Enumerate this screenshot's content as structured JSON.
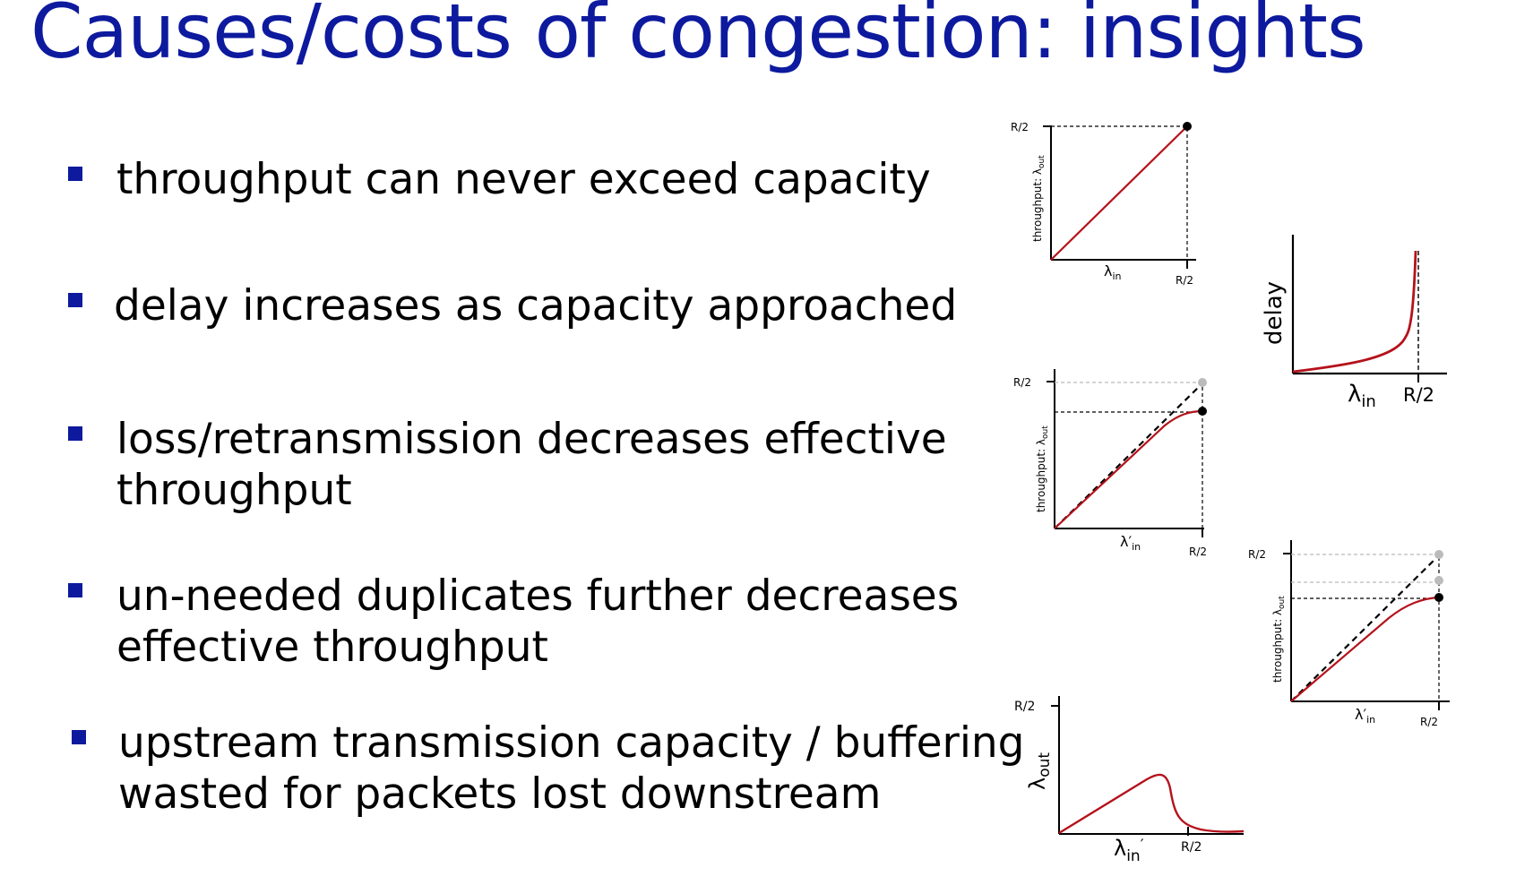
{
  "slide": {
    "title": "Causes/costs of congestion: insights",
    "bullets": [
      {
        "lines": [
          "throughput can never exceed capacity"
        ]
      },
      {
        "lines": [
          "delay increases as capacity approached"
        ]
      },
      {
        "lines": [
          "loss/retransmission decreases effective",
          "throughput"
        ]
      },
      {
        "lines": [
          "un-needed duplicates further decreases",
          "effective throughput"
        ]
      },
      {
        "lines": [
          "upstream transmission capacity / buffering",
          "wasted for packets lost downstream"
        ]
      }
    ],
    "colors": {
      "title": "#0d1a9e",
      "bullet_marker": "#0d1a9e",
      "curve": "#b5121b"
    }
  },
  "graphs": {
    "g1": {
      "y_tick": "R/2",
      "x_tick": "R/2",
      "y_label": "throughput: λ",
      "y_sub": "out",
      "x_label": "λ",
      "x_sub": "in"
    },
    "g2": {
      "y_label": "delay",
      "x_label": "λ",
      "x_sub": "in",
      "x_tick": "R/2"
    },
    "g3": {
      "y_tick": "R/2",
      "x_tick": "R/2",
      "y_label": "throughput: λ",
      "y_sub": "out",
      "x_label": "λ′",
      "x_sub": "in"
    },
    "g4": {
      "y_tick": "R/2",
      "x_tick": "R/2",
      "y_label": "throughput: λ",
      "y_sub": "out",
      "x_label": "λ′",
      "x_sub": "in"
    },
    "g5": {
      "y_tick": "R/2",
      "x_tick": "R/2",
      "y_label": "λ",
      "y_sub": "out",
      "x_label": "λ",
      "x_sub": "in",
      "x_prime": "′"
    }
  }
}
